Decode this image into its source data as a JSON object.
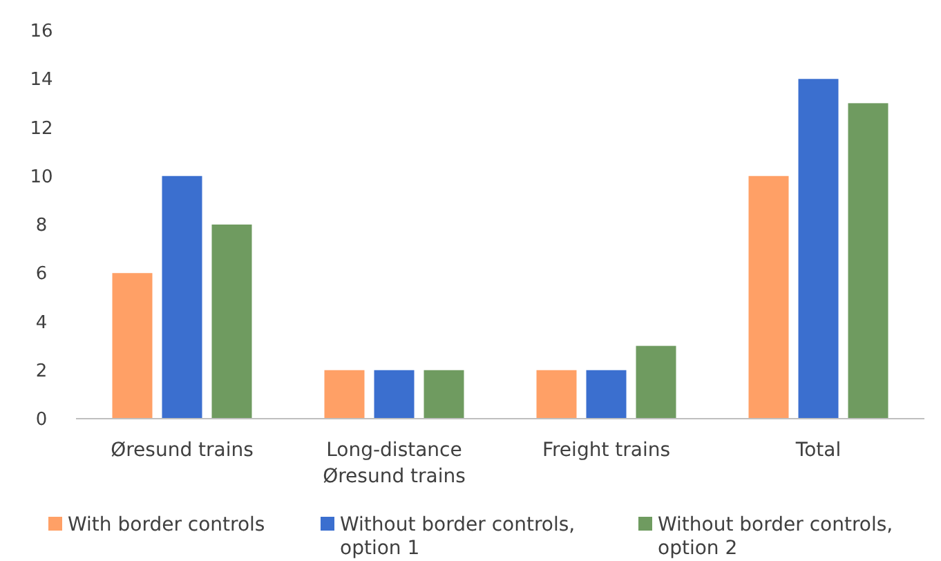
{
  "chart_data": {
    "type": "bar",
    "categories": [
      "Øresund trains",
      "Long-distance Øresund trains",
      "Freight trains",
      "Total"
    ],
    "series": [
      {
        "name": "With border controls",
        "color": "#ffa066",
        "values": [
          6,
          2,
          2,
          10
        ]
      },
      {
        "name": "Without border controls, option 1",
        "color": "#3b6fcf",
        "values": [
          10,
          2,
          2,
          14
        ]
      },
      {
        "name": "Without border controls, option 2",
        "color": "#6f9b60",
        "values": [
          8,
          2,
          3,
          13
        ]
      }
    ],
    "ylim": [
      0,
      16
    ],
    "yticks": [
      0,
      2,
      4,
      6,
      8,
      10,
      12,
      14,
      16
    ],
    "grid": false,
    "legend": "bottom"
  }
}
